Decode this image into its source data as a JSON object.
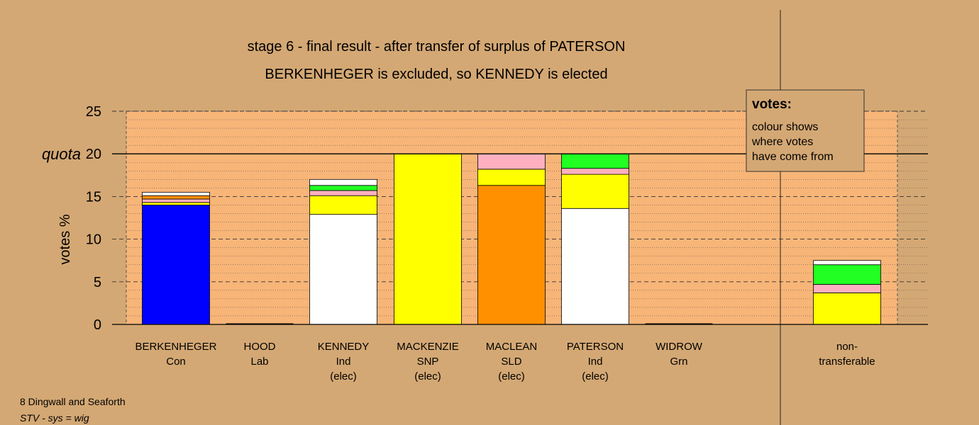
{
  "chart_data": {
    "type": "bar",
    "stacked": true,
    "title_lines": [
      "stage 6 - final result - after transfer of surplus of PATERSON",
      "BERKENHEGER is excluded, so KENNEDY is elected"
    ],
    "ylabel": "votes %",
    "ylim": [
      0,
      25
    ],
    "yticks": [
      0,
      5,
      10,
      15,
      20,
      25
    ],
    "quota": 20,
    "quota_label": "quota",
    "grid": true,
    "categories": [
      {
        "lines": [
          "BERKENHEGER",
          "Con"
        ]
      },
      {
        "lines": [
          "HOOD",
          "Lab"
        ]
      },
      {
        "lines": [
          "KENNEDY",
          "Ind",
          "(elec)"
        ]
      },
      {
        "lines": [
          "MACKENZIE",
          "SNP",
          "(elec)"
        ]
      },
      {
        "lines": [
          "MACLEAN",
          "SLD",
          "(elec)"
        ]
      },
      {
        "lines": [
          "PATERSON",
          "Ind",
          "(elec)"
        ]
      },
      {
        "lines": [
          "WIDROW",
          "Grn"
        ]
      },
      {
        "lines": [
          "non-",
          "transferable"
        ]
      }
    ],
    "stacks": [
      [
        {
          "value": 14.0,
          "color": "#0000ff"
        },
        {
          "value": 0.3,
          "color": "#ffff00"
        },
        {
          "value": 0.4,
          "color": "#ffb0c0"
        },
        {
          "value": 0.4,
          "color": "#ff9000"
        },
        {
          "value": 0.4,
          "color": "#ffffff"
        }
      ],
      [],
      [
        {
          "value": 12.9,
          "color": "#ffffff"
        },
        {
          "value": 2.2,
          "color": "#ffff00"
        },
        {
          "value": 0.6,
          "color": "#ffb0c0"
        },
        {
          "value": 0.6,
          "color": "#22ff22"
        },
        {
          "value": 0.7,
          "color": "#ffffff"
        }
      ],
      [
        {
          "value": 20.0,
          "color": "#ffff00"
        }
      ],
      [
        {
          "value": 16.3,
          "color": "#ff9000"
        },
        {
          "value": 1.9,
          "color": "#ffff00"
        },
        {
          "value": 1.8,
          "color": "#ffb0c0"
        }
      ],
      [
        {
          "value": 13.6,
          "color": "#ffffff"
        },
        {
          "value": 4.0,
          "color": "#ffff00"
        },
        {
          "value": 0.7,
          "color": "#ffb0c0"
        },
        {
          "value": 1.7,
          "color": "#22ff22"
        }
      ],
      [],
      [
        {
          "value": 3.7,
          "color": "#ffff00"
        },
        {
          "value": 1.0,
          "color": "#ffb0c0"
        },
        {
          "value": 2.3,
          "color": "#22ff22"
        },
        {
          "value": 0.5,
          "color": "#ffffff"
        }
      ]
    ],
    "legend": {
      "title": "votes:",
      "lines": [
        "colour shows",
        "where votes",
        "have come from"
      ],
      "placement": "top-right"
    }
  },
  "footer": {
    "constituency": "8 Dingwall and Seaforth",
    "system": "STV - sys = wig"
  },
  "colors": {
    "background": "#d4a874",
    "plot_area": "#f7b578"
  }
}
